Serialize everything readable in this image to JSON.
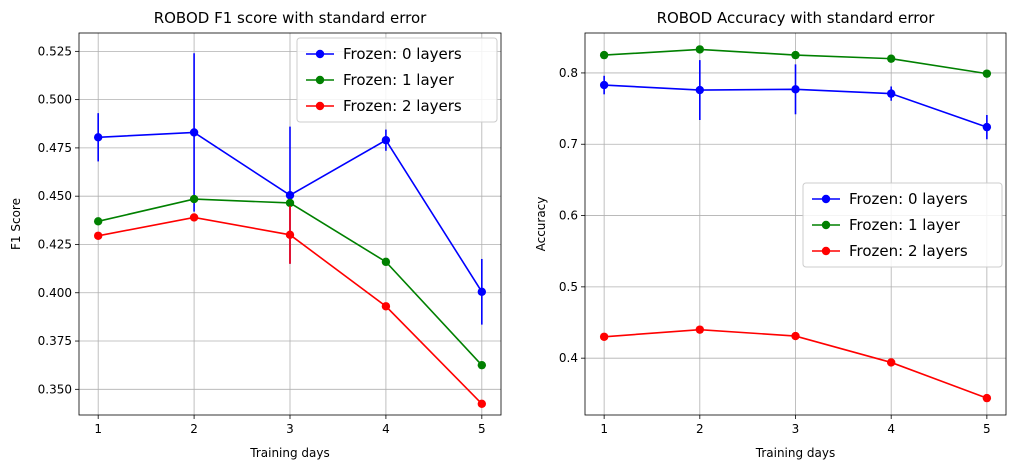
{
  "chart_data": [
    {
      "type": "line",
      "title": "ROBOD F1 score with standard error",
      "xlabel": "Training days",
      "ylabel": "F1 Score",
      "x": [
        1,
        2,
        3,
        4,
        5
      ],
      "xlim": [
        0.8,
        5.2
      ],
      "ylim": [
        0.3367,
        0.5345
      ],
      "yticks": [
        "0.350",
        "0.375",
        "0.400",
        "0.425",
        "0.450",
        "0.475",
        "0.500",
        "0.525"
      ],
      "ytick_values": [
        0.35,
        0.375,
        0.4,
        0.425,
        0.45,
        0.475,
        0.5,
        0.525
      ],
      "xticks": [
        "1",
        "2",
        "3",
        "4",
        "5"
      ],
      "grid": true,
      "legend_position": "top-right",
      "series": [
        {
          "name": "Frozen: 0 layers",
          "color": "#0000ff",
          "values": [
            0.4805,
            0.483,
            0.4505,
            0.479,
            0.4005
          ],
          "errors": [
            0.0125,
            0.041,
            0.0355,
            0.0055,
            0.017
          ]
        },
        {
          "name": "Frozen: 1 layer",
          "color": "#008000",
          "values": [
            0.437,
            0.4485,
            0.4465,
            0.416,
            0.3625
          ],
          "errors": [
            0,
            0,
            0,
            0,
            0
          ]
        },
        {
          "name": "Frozen: 2 layers",
          "color": "#ff0000",
          "values": [
            0.4295,
            0.439,
            0.43,
            0.393,
            0.3425
          ],
          "errors": [
            0,
            0,
            0.015,
            0,
            0
          ]
        }
      ]
    },
    {
      "type": "line",
      "title": "ROBOD Accuracy with standard error",
      "xlabel": "Training days",
      "ylabel": "Accuracy",
      "x": [
        1,
        2,
        3,
        4,
        5
      ],
      "xlim": [
        0.8,
        5.2
      ],
      "ylim": [
        0.3203,
        0.856
      ],
      "yticks": [
        "0.4",
        "0.5",
        "0.6",
        "0.7",
        "0.8"
      ],
      "ytick_values": [
        0.4,
        0.5,
        0.6,
        0.7,
        0.8
      ],
      "xticks": [
        "1",
        "2",
        "3",
        "4",
        "5"
      ],
      "grid": true,
      "legend_position": "center-right",
      "series": [
        {
          "name": "Frozen: 0 layers",
          "color": "#0000ff",
          "values": [
            0.783,
            0.776,
            0.777,
            0.771,
            0.724
          ],
          "errors": [
            0.013,
            0.042,
            0.035,
            0.01,
            0.017
          ]
        },
        {
          "name": "Frozen: 1 layer",
          "color": "#008000",
          "values": [
            0.825,
            0.833,
            0.825,
            0.82,
            0.799
          ],
          "errors": [
            0,
            0,
            0,
            0,
            0
          ]
        },
        {
          "name": "Frozen: 2 layers",
          "color": "#ff0000",
          "values": [
            0.43,
            0.44,
            0.431,
            0.394,
            0.344
          ],
          "errors": [
            0,
            0,
            0,
            0,
            0
          ]
        }
      ]
    }
  ]
}
